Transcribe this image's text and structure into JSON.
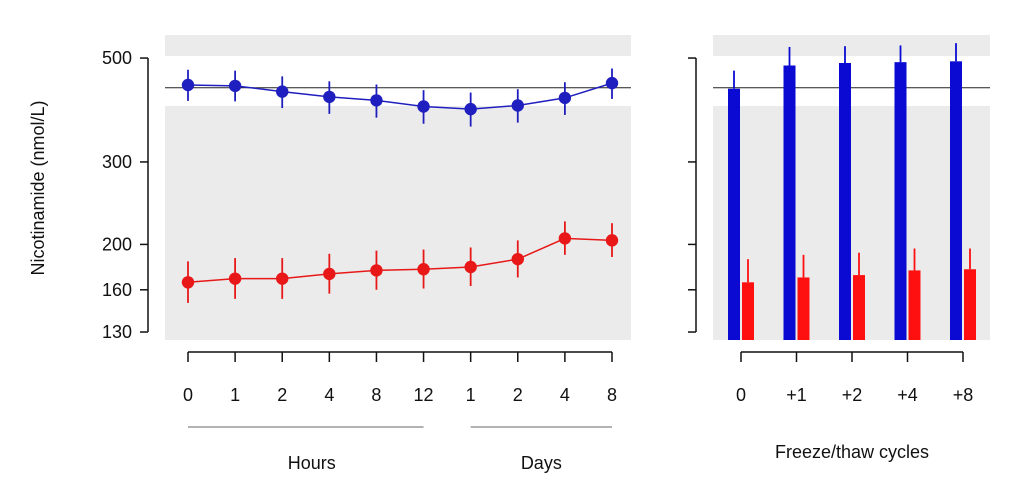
{
  "chart_data": [
    {
      "type": "line",
      "ylabel": "Nicotinamide (nmol/L)",
      "yscale": "log",
      "yticks": [
        130,
        160,
        200,
        300,
        500
      ],
      "ylim": [
        125,
        560
      ],
      "categories": [
        "0",
        "1",
        "2",
        "4",
        "8",
        "12",
        "1",
        "2",
        "4",
        "8"
      ],
      "x_groups": [
        {
          "label": "Hours",
          "categories": [
            "0",
            "1",
            "2",
            "4",
            "8",
            "12"
          ]
        },
        {
          "label": "Days",
          "categories": [
            "1",
            "2",
            "4",
            "8"
          ]
        }
      ],
      "shaded_bands": [
        [
          125,
          395
        ],
        [
          505,
          560
        ]
      ],
      "reference_line": 432,
      "series": [
        {
          "color": "#1f1fbf",
          "values": [
            438,
            436,
            424,
            413,
            406,
            394,
            389,
            396,
            411,
            442
          ],
          "error_low": [
            405,
            404,
            391,
            380,
            373,
            362,
            357,
            364,
            378,
            409
          ],
          "error_high": [
            472,
            470,
            457,
            446,
            439,
            427,
            422,
            429,
            444,
            475
          ]
        },
        {
          "color": "#e81818",
          "values": [
            166,
            169,
            169,
            173,
            176,
            177,
            179,
            186,
            206,
            204
          ],
          "error_low": [
            150,
            153,
            153,
            157,
            160,
            161,
            163,
            170,
            190,
            188
          ],
          "error_high": [
            184,
            187,
            187,
            191,
            194,
            195,
            197,
            204,
            224,
            222
          ]
        }
      ]
    },
    {
      "type": "bar",
      "xlabel": "Freeze/thaw cycles",
      "yscale": "log",
      "yticks": [
        130,
        160,
        200,
        300,
        500
      ],
      "ylim": [
        125,
        560
      ],
      "categories": [
        "0",
        "+1",
        "+2",
        "+4",
        "+8"
      ],
      "shaded_bands": [
        [
          125,
          395
        ],
        [
          505,
          560
        ]
      ],
      "reference_line": 432,
      "series": [
        {
          "color": "#0a0ad2",
          "values": [
            430,
            482,
            488,
            490,
            492
          ],
          "error_high": [
            470,
            528,
            530,
            532,
            538
          ]
        },
        {
          "color": "#ff1010",
          "values": [
            166,
            170,
            172,
            176,
            177
          ],
          "error_high": [
            186,
            190,
            192,
            196,
            196
          ]
        }
      ]
    }
  ]
}
